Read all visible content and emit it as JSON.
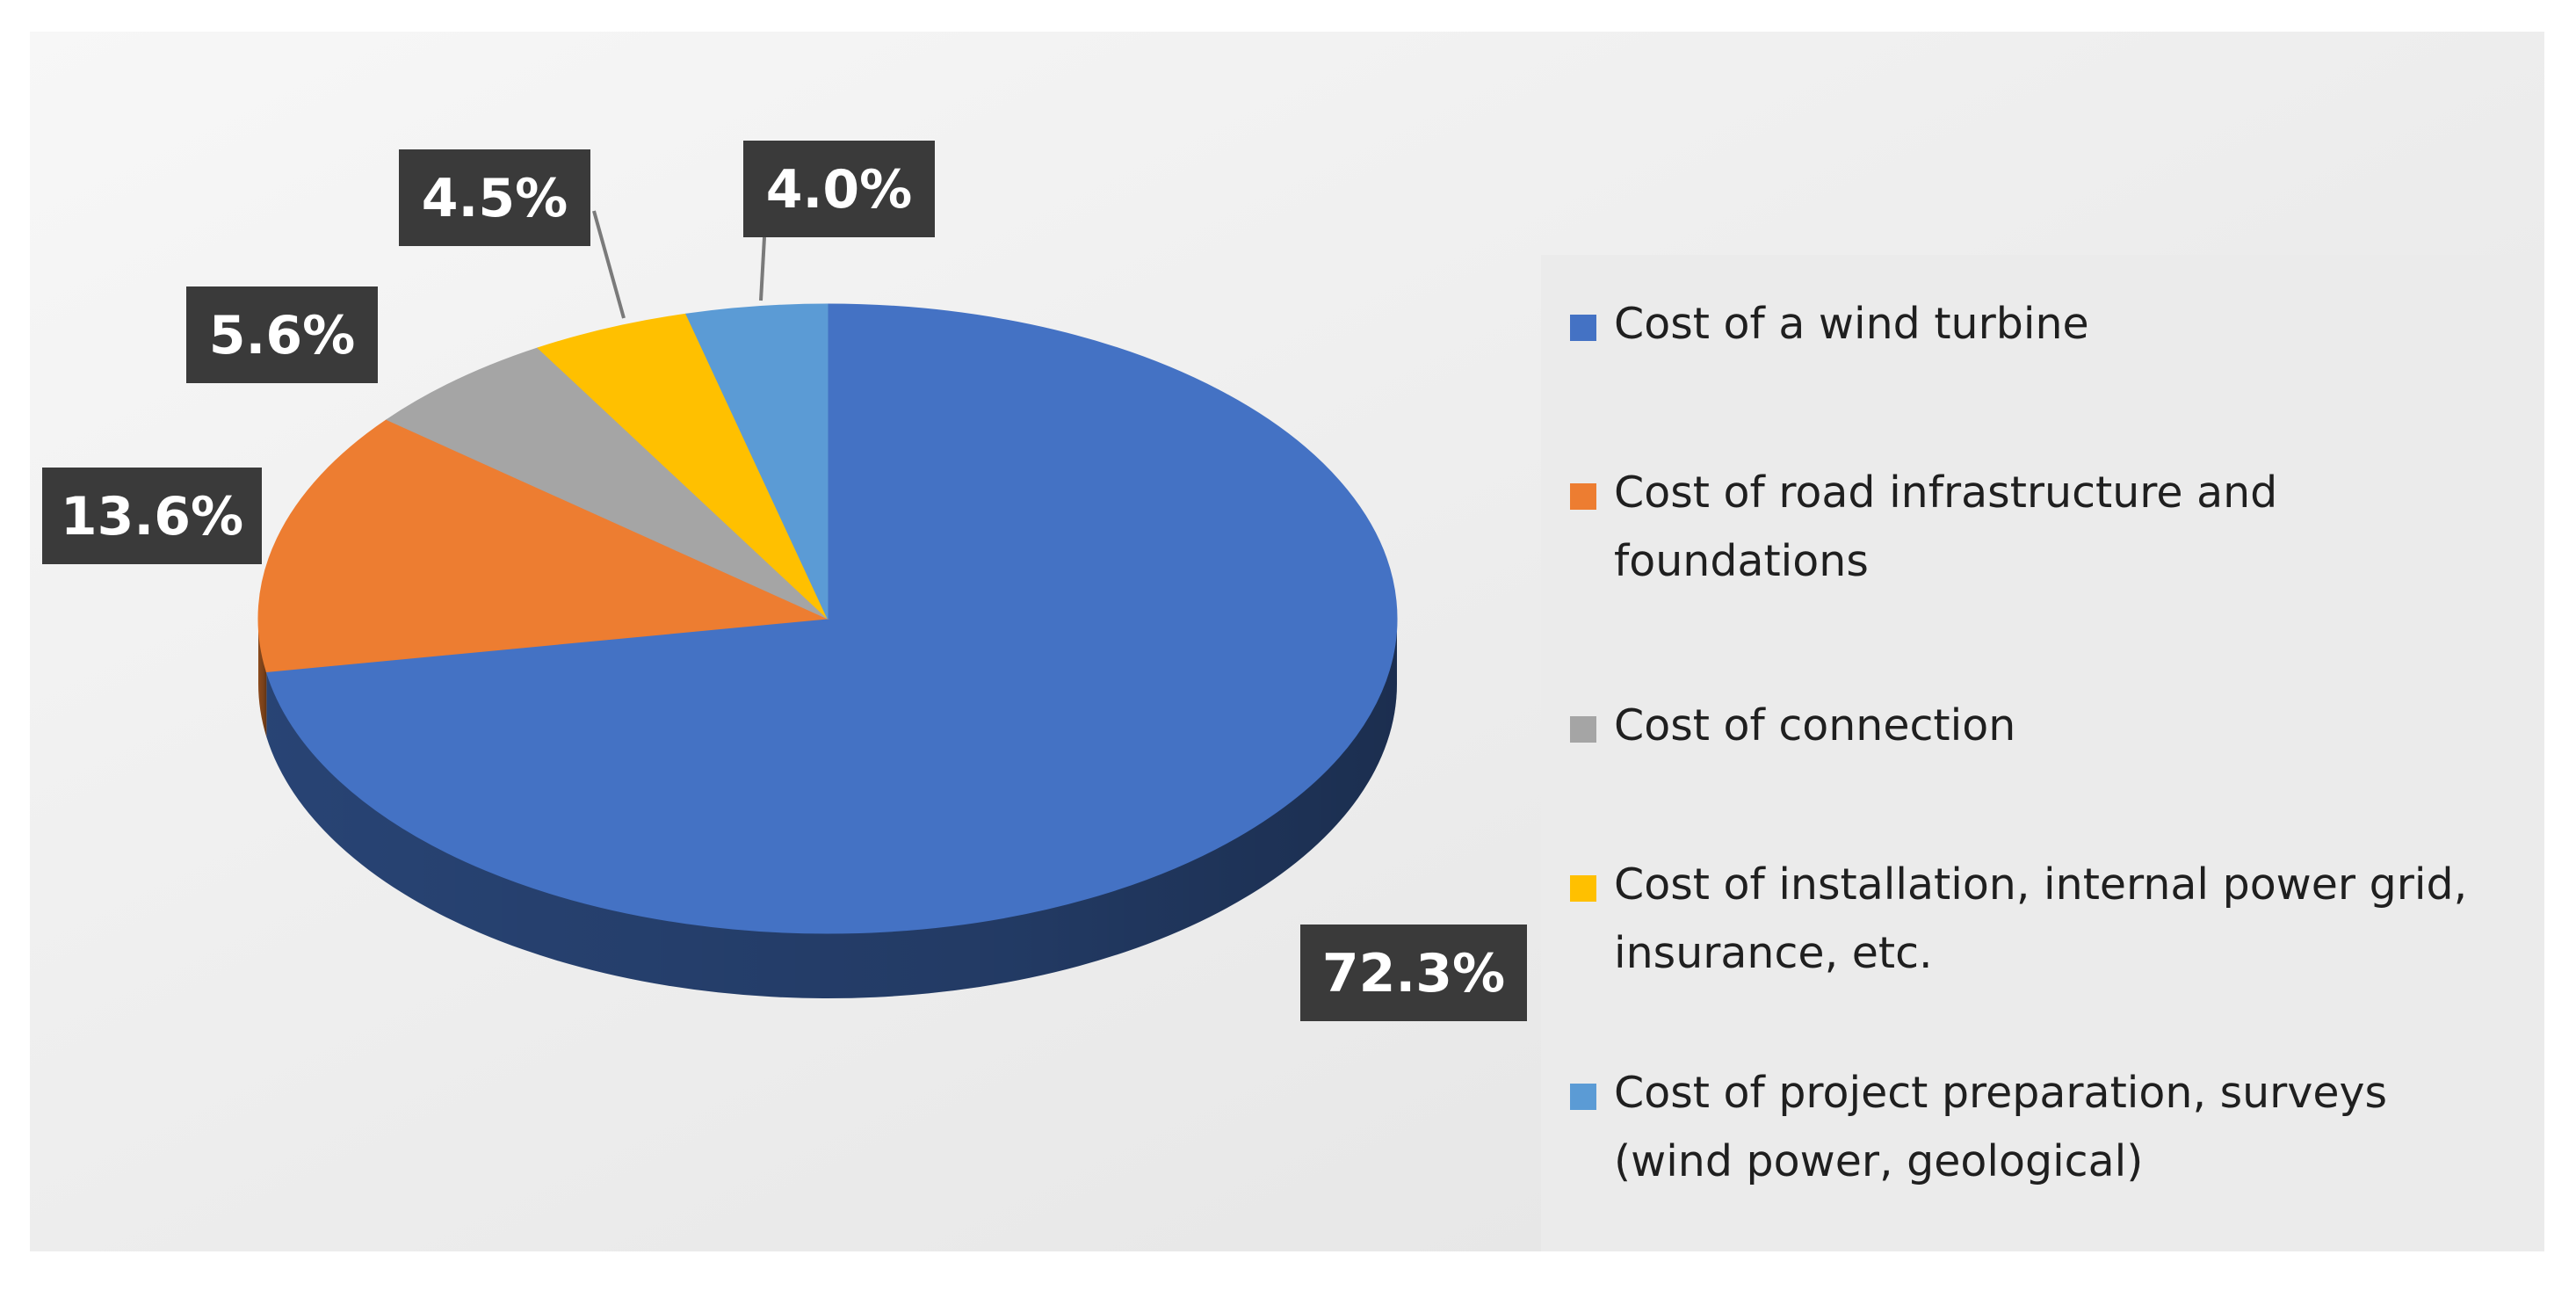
{
  "chart_data": {
    "type": "pie",
    "style": "3d",
    "labels": [
      "Cost of a wind turbine",
      "Cost of road infrastructure and foundations",
      "Cost of connection",
      "Cost of installation, internal power grid, insurance, etc.",
      "Cost of project preparation, surveys (wind power, geological)"
    ],
    "values": [
      72.3,
      13.6,
      5.6,
      4.5,
      4.0
    ],
    "value_labels": [
      "72.3%",
      "13.6%",
      "5.6%",
      "4.5%",
      "4.0%"
    ],
    "colors": [
      "#4472c4",
      "#ed7d31",
      "#a5a5a5",
      "#ffc000",
      "#5b9bd5"
    ],
    "label_box_color": "#3a3a3a",
    "label_text_color": "#ffffff",
    "legend_position": "right",
    "start_angle": "12 o'clock",
    "direction": "clockwise"
  }
}
